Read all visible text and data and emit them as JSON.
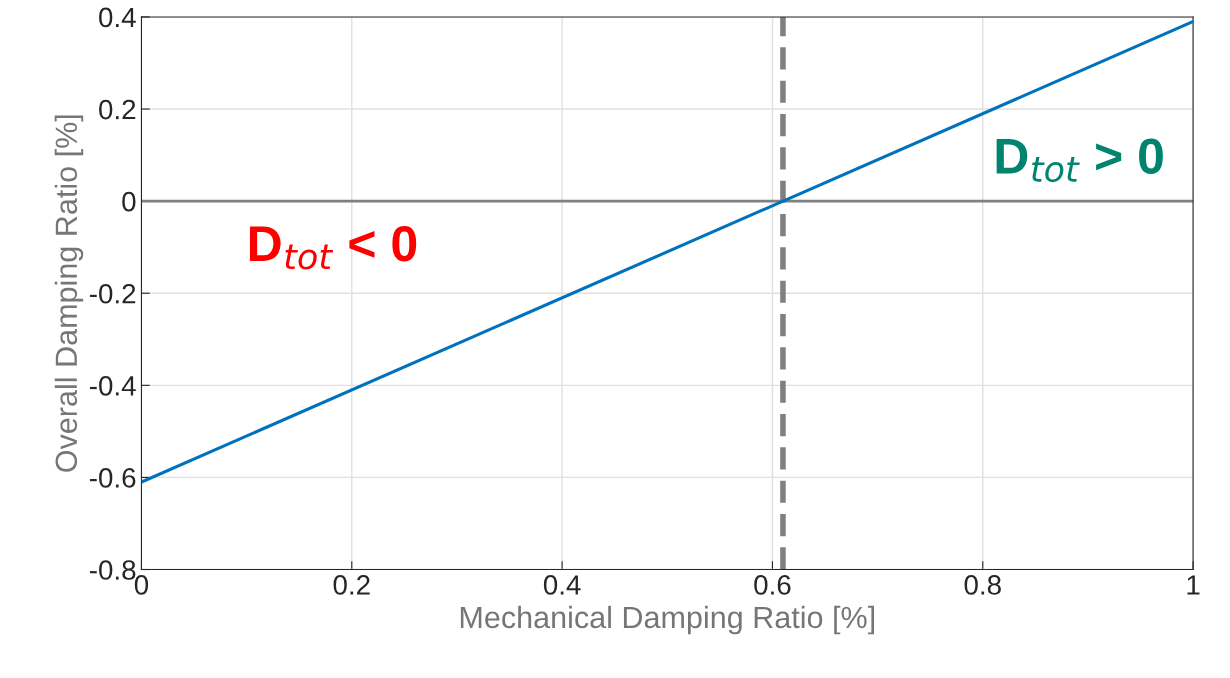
{
  "chart_data": {
    "type": "line",
    "xlabel": "Mechanical Damping Ratio [%]",
    "ylabel": "Overall Damping Ratio [%]",
    "x": [
      0,
      1
    ],
    "series": [
      {
        "color": "#0072bd",
        "values": [
          -0.61,
          0.39
        ]
      }
    ],
    "xlim": [
      0,
      1
    ],
    "ylim": [
      -0.8,
      0.4
    ],
    "xticks": [
      0,
      0.2,
      0.4,
      0.6,
      0.8,
      1
    ],
    "yticks": [
      -0.8,
      -0.6,
      -0.4,
      -0.2,
      0,
      0.2,
      0.4
    ],
    "grid": true,
    "ref_lines": [
      {
        "axis": "y",
        "value": 0,
        "color": "#808080",
        "line_style": "solid"
      },
      {
        "axis": "x",
        "value": 0.61,
        "color": "#808080",
        "line_style": "dashed"
      }
    ],
    "annotations": [
      "D$_{tot}$ < 0",
      "D$_{tot}$ > 0"
    ]
  }
}
